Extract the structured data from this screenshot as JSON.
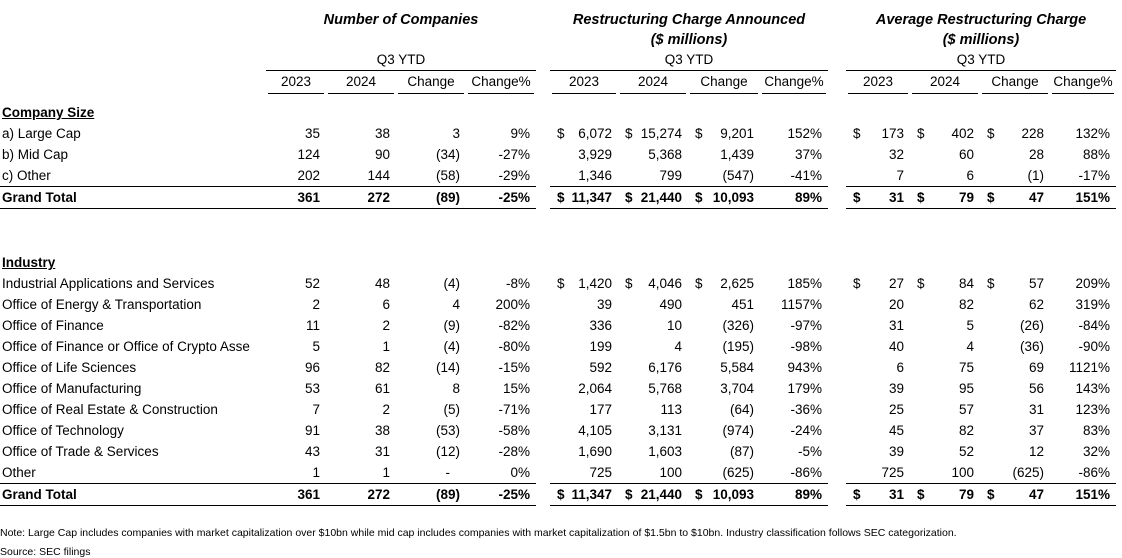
{
  "groups": [
    {
      "title": "Number of Companies",
      "subtitle": "",
      "period": "Q3 YTD",
      "columns": [
        "2023",
        "2024",
        "Change",
        "Change%"
      ]
    },
    {
      "title": "Restructuring Charge Announced",
      "subtitle": "($ millions)",
      "period": "Q3 YTD",
      "columns": [
        "2023",
        "2024",
        "Change",
        "Change%"
      ]
    },
    {
      "title": "Average Restructuring Charge",
      "subtitle": "($ millions)",
      "period": "Q3 YTD",
      "columns": [
        "2023",
        "2024",
        "Change",
        "Change%"
      ]
    }
  ],
  "sections": [
    {
      "label": "Company Size",
      "rows": [
        {
          "label": "a) Large Cap",
          "cells": [
            [
              "35",
              "38",
              "3",
              "9%"
            ],
            [
              "$|6,072",
              "$|15,274",
              "$|9,201",
              "152%"
            ],
            [
              "$|173",
              "$|402",
              "$|228",
              "132%"
            ]
          ]
        },
        {
          "label": "b) Mid Cap",
          "cells": [
            [
              "124",
              "90",
              "(34)",
              "-27%"
            ],
            [
              "3,929",
              "5,368",
              "1,439",
              "37%"
            ],
            [
              "32",
              "60",
              "28",
              "88%"
            ]
          ]
        },
        {
          "label": "c) Other",
          "cells": [
            [
              "202",
              "144",
              "(58)",
              "-29%"
            ],
            [
              "1,346",
              "799",
              "(547)",
              "-41%"
            ],
            [
              "7",
              "6",
              "(1)",
              "-17%"
            ]
          ]
        }
      ],
      "total": {
        "label": "Grand Total",
        "cells": [
          [
            "361",
            "272",
            "(89)",
            "-25%"
          ],
          [
            "$|11,347",
            "$|21,440",
            "$|10,093",
            "89%"
          ],
          [
            "$|31",
            "$|79",
            "$|47",
            "151%"
          ]
        ]
      }
    },
    {
      "label": "Industry",
      "rows": [
        {
          "label": "Industrial Applications and Services",
          "cells": [
            [
              "52",
              "48",
              "(4)",
              "-8%"
            ],
            [
              "$|1,420",
              "$|4,046",
              "$|2,625",
              "185%"
            ],
            [
              "$|27",
              "$|84",
              "$|57",
              "209%"
            ]
          ]
        },
        {
          "label": "Office of Energy & Transportation",
          "cells": [
            [
              "2",
              "6",
              "4",
              "200%"
            ],
            [
              "39",
              "490",
              "451",
              "1157%"
            ],
            [
              "20",
              "82",
              "62",
              "319%"
            ]
          ]
        },
        {
          "label": "Office of Finance",
          "cells": [
            [
              "11",
              "2",
              "(9)",
              "-82%"
            ],
            [
              "336",
              "10",
              "(326)",
              "-97%"
            ],
            [
              "31",
              "5",
              "(26)",
              "-84%"
            ]
          ]
        },
        {
          "label": "Office of Finance or Office of Crypto Asse",
          "cells": [
            [
              "5",
              "1",
              "(4)",
              "-80%"
            ],
            [
              "199",
              "4",
              "(195)",
              "-98%"
            ],
            [
              "40",
              "4",
              "(36)",
              "-90%"
            ]
          ]
        },
        {
          "label": "Office of Life Sciences",
          "cells": [
            [
              "96",
              "82",
              "(14)",
              "-15%"
            ],
            [
              "592",
              "6,176",
              "5,584",
              "943%"
            ],
            [
              "6",
              "75",
              "69",
              "1121%"
            ]
          ]
        },
        {
          "label": "Office of Manufacturing",
          "cells": [
            [
              "53",
              "61",
              "8",
              "15%"
            ],
            [
              "2,064",
              "5,768",
              "3,704",
              "179%"
            ],
            [
              "39",
              "95",
              "56",
              "143%"
            ]
          ]
        },
        {
          "label": "Office of Real Estate & Construction",
          "cells": [
            [
              "7",
              "2",
              "(5)",
              "-71%"
            ],
            [
              "177",
              "113",
              "(64)",
              "-36%"
            ],
            [
              "25",
              "57",
              "31",
              "123%"
            ]
          ]
        },
        {
          "label": "Office of Technology",
          "cells": [
            [
              "91",
              "38",
              "(53)",
              "-58%"
            ],
            [
              "4,105",
              "3,131",
              "(974)",
              "-24%"
            ],
            [
              "45",
              "82",
              "37",
              "83%"
            ]
          ]
        },
        {
          "label": "Office of Trade & Services",
          "cells": [
            [
              "43",
              "31",
              "(12)",
              "-28%"
            ],
            [
              "1,690",
              "1,603",
              "(87)",
              "-5%"
            ],
            [
              "39",
              "52",
              "12",
              "32%"
            ]
          ]
        },
        {
          "label": "Other",
          "cells": [
            [
              "1",
              "1",
              "-",
              "0%"
            ],
            [
              "725",
              "100",
              "(625)",
              "-86%"
            ],
            [
              "725",
              "100",
              "(625)",
              "-86%"
            ]
          ]
        }
      ],
      "total": {
        "label": "Grand Total",
        "cells": [
          [
            "361",
            "272",
            "(89)",
            "-25%"
          ],
          [
            "$|11,347",
            "$|21,440",
            "$|10,093",
            "89%"
          ],
          [
            "$|31",
            "$|79",
            "$|47",
            "151%"
          ]
        ]
      }
    }
  ],
  "footnotes": {
    "note": "Note: Large Cap includes companies with market capitalization over $10bn while mid cap includes companies with market capitalization of $1.5bn to $10bn. Industry classification follows SEC categorization.",
    "source": "Source: SEC filings"
  },
  "colors": {
    "text": "#000000",
    "background": "#ffffff",
    "rule": "#000000"
  }
}
